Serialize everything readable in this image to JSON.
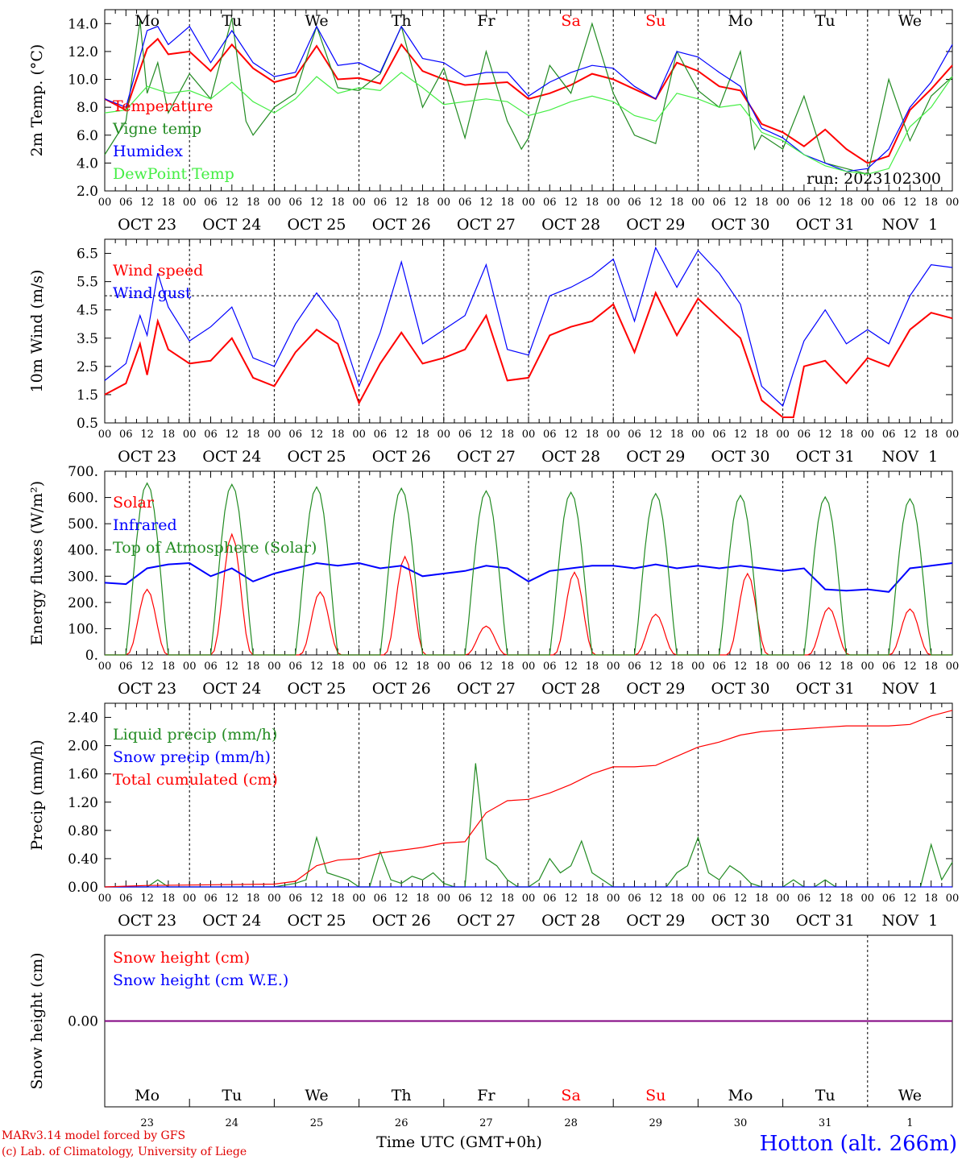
{
  "colors": {
    "red": "#ff0000",
    "green": "#228b22",
    "blue": "#0000ff",
    "lightgreen": "#44ee44",
    "purple": "#800080",
    "black": "#000000"
  },
  "days": [
    {
      "dow": "Mo",
      "date": "OCT 23",
      "num": "23",
      "weekend": false
    },
    {
      "dow": "Tu",
      "date": "OCT 24",
      "num": "24",
      "weekend": false
    },
    {
      "dow": "We",
      "date": "OCT 25",
      "num": "25",
      "weekend": false
    },
    {
      "dow": "Th",
      "date": "OCT 26",
      "num": "26",
      "weekend": false
    },
    {
      "dow": "Fr",
      "date": "OCT 27",
      "num": "27",
      "weekend": false
    },
    {
      "dow": "Sa",
      "date": "OCT 28",
      "num": "28",
      "weekend": true
    },
    {
      "dow": "Su",
      "date": "OCT 29",
      "num": "29",
      "weekend": true
    },
    {
      "dow": "Mo",
      "date": "OCT 30",
      "num": "30",
      "weekend": false
    },
    {
      "dow": "Tu",
      "date": "OCT 31",
      "num": "31",
      "weekend": false
    },
    {
      "dow": "We",
      "date": "NOV  1",
      "num": "1",
      "weekend": false
    }
  ],
  "hour_ticks": [
    "00",
    "06",
    "12",
    "18"
  ],
  "last_tick": "00",
  "footer": {
    "model": "MARv3.14 model forced by GFS",
    "copyright": "(c) Lab. of Climatology, University of Liege",
    "xlabel": "Time UTC (GMT+0h)",
    "station": "Hotton (alt. 266m)"
  },
  "chart_data": [
    {
      "type": "line",
      "ylabel": "2m Temp. (°C)",
      "ylim": [
        2.0,
        15.0
      ],
      "yticks": [
        "2.0",
        "4.0",
        "6.0",
        "8.0",
        "10.0",
        "12.0",
        "14.0"
      ],
      "run_label": "run: 2023102300",
      "x_unit": "hours since OCT 23 00 UTC",
      "series": [
        {
          "name": "Temperature",
          "color": "#ff0000",
          "x": [
            0,
            6,
            12,
            15,
            18,
            24,
            30,
            36,
            42,
            48,
            54,
            60,
            66,
            72,
            78,
            84,
            90,
            96,
            102,
            108,
            114,
            120,
            126,
            132,
            138,
            144,
            150,
            156,
            162,
            168,
            174,
            180,
            186,
            192,
            198,
            204,
            210,
            216,
            222,
            228,
            234,
            240
          ],
          "y": [
            8.6,
            7.8,
            12.2,
            12.9,
            11.8,
            12.0,
            10.6,
            12.5,
            10.8,
            9.8,
            10.2,
            12.4,
            10.0,
            10.1,
            9.7,
            12.5,
            10.6,
            10.0,
            9.6,
            9.7,
            9.8,
            8.6,
            9.0,
            9.6,
            10.4,
            10.0,
            9.3,
            8.6,
            11.2,
            10.6,
            9.5,
            9.2,
            6.8,
            6.2,
            5.2,
            6.4,
            5.0,
            4.0,
            4.5,
            7.8,
            9.3,
            11.0
          ]
        },
        {
          "name": "Vigne temp",
          "color": "#228b22",
          "x": [
            0,
            6,
            10,
            12,
            15,
            18,
            24,
            30,
            36,
            40,
            42,
            48,
            54,
            60,
            66,
            72,
            78,
            84,
            90,
            96,
            102,
            108,
            114,
            118,
            120,
            126,
            132,
            138,
            144,
            150,
            156,
            162,
            168,
            174,
            180,
            184,
            186,
            192,
            198,
            204,
            210,
            216,
            222,
            228,
            234,
            240
          ],
          "y": [
            4.6,
            7.0,
            14.2,
            9.0,
            11.2,
            7.6,
            10.4,
            8.6,
            14.4,
            7.0,
            6.0,
            8.0,
            9.0,
            13.8,
            9.4,
            9.2,
            10.4,
            13.8,
            8.0,
            10.8,
            5.8,
            12.0,
            7.0,
            5.0,
            5.8,
            11.0,
            9.0,
            14.0,
            9.0,
            6.0,
            5.4,
            12.0,
            9.2,
            8.0,
            12.0,
            5.0,
            6.0,
            5.0,
            8.8,
            4.0,
            3.6,
            3.2,
            10.0,
            5.6,
            8.8,
            10.2
          ]
        },
        {
          "name": "Humidex",
          "color": "#0000ff",
          "x": [
            0,
            6,
            12,
            15,
            18,
            24,
            30,
            36,
            42,
            48,
            54,
            60,
            66,
            72,
            78,
            84,
            90,
            96,
            102,
            108,
            114,
            120,
            126,
            132,
            138,
            144,
            150,
            156,
            162,
            168,
            174,
            180,
            186,
            192,
            198,
            204,
            210,
            216,
            222,
            228,
            234,
            240
          ],
          "y": [
            8.6,
            8.0,
            13.5,
            13.8,
            12.5,
            13.8,
            11.2,
            13.5,
            11.2,
            10.2,
            10.5,
            13.8,
            11.0,
            11.2,
            10.5,
            13.8,
            11.5,
            11.2,
            10.2,
            10.5,
            10.5,
            8.8,
            9.8,
            10.5,
            11.0,
            10.8,
            9.5,
            8.6,
            12.0,
            11.6,
            10.5,
            9.5,
            6.5,
            5.8,
            4.6,
            4.0,
            3.4,
            3.6,
            5.0,
            8.0,
            9.8,
            12.5
          ]
        },
        {
          "name": "DewPoint Temp",
          "color": "#44ee44",
          "x": [
            0,
            6,
            12,
            18,
            24,
            30,
            36,
            42,
            48,
            54,
            60,
            66,
            72,
            78,
            84,
            90,
            96,
            102,
            108,
            114,
            120,
            126,
            132,
            138,
            144,
            150,
            156,
            162,
            168,
            174,
            180,
            186,
            192,
            198,
            204,
            210,
            216,
            222,
            228,
            234,
            240
          ],
          "y": [
            7.6,
            7.8,
            9.5,
            9.0,
            9.2,
            8.6,
            9.8,
            8.4,
            7.6,
            8.6,
            10.2,
            9.0,
            9.4,
            9.2,
            10.5,
            9.4,
            8.2,
            8.4,
            8.6,
            8.4,
            7.4,
            7.8,
            8.4,
            8.8,
            8.4,
            7.4,
            7.0,
            9.0,
            8.6,
            8.0,
            8.2,
            6.2,
            5.6,
            4.6,
            3.8,
            3.4,
            3.2,
            3.6,
            6.6,
            8.0,
            10.2
          ]
        }
      ]
    },
    {
      "type": "line",
      "ylabel": "10m Wind (m/s)",
      "ylim": [
        0.5,
        7.0
      ],
      "yticks": [
        "0.5",
        "1.5",
        "2.5",
        "3.5",
        "4.5",
        "5.5",
        "6.5"
      ],
      "reference_line": 5.0,
      "x_unit": "hours since OCT 23 00 UTC",
      "series": [
        {
          "name": "Wind speed",
          "color": "#ff0000",
          "x": [
            0,
            6,
            10,
            12,
            15,
            18,
            24,
            30,
            36,
            42,
            48,
            54,
            60,
            66,
            72,
            78,
            84,
            90,
            96,
            102,
            108,
            114,
            120,
            126,
            132,
            138,
            144,
            150,
            156,
            162,
            168,
            174,
            180,
            186,
            192,
            195,
            198,
            204,
            210,
            216,
            222,
            228,
            234,
            240
          ],
          "y": [
            1.5,
            1.9,
            3.3,
            2.2,
            4.1,
            3.1,
            2.6,
            2.7,
            3.5,
            2.1,
            1.8,
            3.0,
            3.8,
            3.3,
            1.2,
            2.6,
            3.7,
            2.6,
            2.8,
            3.1,
            4.3,
            2.0,
            2.1,
            3.6,
            3.9,
            4.1,
            4.7,
            3.0,
            5.1,
            3.6,
            4.9,
            4.2,
            3.5,
            1.3,
            0.7,
            0.7,
            2.5,
            2.7,
            1.9,
            2.8,
            2.5,
            3.8,
            4.4,
            4.2
          ]
        },
        {
          "name": "Wind gust",
          "color": "#0000ff",
          "x": [
            0,
            6,
            10,
            12,
            15,
            18,
            24,
            30,
            36,
            42,
            48,
            54,
            60,
            66,
            72,
            78,
            84,
            90,
            96,
            102,
            108,
            114,
            120,
            126,
            132,
            138,
            144,
            150,
            156,
            162,
            168,
            174,
            180,
            186,
            192,
            195,
            198,
            204,
            210,
            216,
            222,
            228,
            234,
            240
          ],
          "y": [
            2.0,
            2.6,
            4.3,
            3.6,
            5.8,
            4.6,
            3.4,
            3.9,
            4.6,
            2.8,
            2.5,
            4.0,
            5.1,
            4.1,
            1.8,
            3.7,
            6.2,
            3.3,
            3.8,
            4.3,
            6.1,
            3.1,
            2.9,
            5.0,
            5.3,
            5.7,
            6.3,
            4.1,
            6.7,
            5.3,
            6.6,
            5.8,
            4.7,
            1.8,
            1.1,
            2.3,
            3.4,
            4.5,
            3.3,
            3.8,
            3.3,
            5.0,
            6.1,
            6.0
          ]
        }
      ]
    },
    {
      "type": "line",
      "ylabel": "Energy fluxes (W/m²)",
      "ylim": [
        0,
        700
      ],
      "yticks": [
        "0.",
        "100.",
        "200.",
        "300.",
        "400.",
        "500.",
        "600.",
        "700."
      ],
      "x_unit": "hours since OCT 23 00 UTC",
      "series": [
        {
          "name": "Solar",
          "color": "#ff0000",
          "peaks": [
            250,
            460,
            240,
            375,
            110,
            315,
            155,
            310,
            180,
            175
          ],
          "peak_hours": [
            12,
            12,
            13,
            13,
            12,
            13,
            12,
            14,
            13,
            12
          ]
        },
        {
          "name": "Infrared",
          "color": "#0000ff",
          "x": [
            0,
            6,
            12,
            18,
            24,
            30,
            36,
            42,
            48,
            54,
            60,
            66,
            72,
            78,
            84,
            90,
            96,
            102,
            108,
            114,
            120,
            126,
            132,
            138,
            144,
            150,
            156,
            162,
            168,
            174,
            180,
            186,
            192,
            198,
            204,
            210,
            216,
            222,
            228,
            234,
            240
          ],
          "y": [
            275,
            270,
            330,
            345,
            350,
            300,
            330,
            280,
            310,
            330,
            350,
            340,
            350,
            330,
            340,
            300,
            310,
            320,
            340,
            330,
            280,
            320,
            330,
            340,
            340,
            330,
            345,
            330,
            340,
            330,
            340,
            330,
            320,
            330,
            250,
            245,
            250,
            240,
            330,
            340,
            350
          ]
        },
        {
          "name": "Top of Atmosphere (Solar)",
          "color": "#228b22",
          "peaks": [
            655,
            650,
            640,
            635,
            625,
            620,
            615,
            608,
            602,
            595
          ],
          "peak_hours": [
            12,
            12,
            12,
            12,
            12,
            12,
            12,
            12,
            12,
            12
          ]
        }
      ]
    },
    {
      "type": "line",
      "ylabel": "Precip (mm/h)",
      "ylim": [
        0,
        2.6
      ],
      "yticks": [
        "0.00",
        "0.40",
        "0.80",
        "1.20",
        "1.60",
        "2.00",
        "2.40"
      ],
      "x_unit": "hours since OCT 23 00 UTC",
      "series": [
        {
          "name": "Liquid precip (mm/h)",
          "color": "#228b22",
          "x": [
            0,
            12,
            15,
            18,
            48,
            54,
            57,
            60,
            63,
            66,
            69,
            72,
            75,
            78,
            81,
            84,
            87,
            90,
            93,
            96,
            99,
            102,
            105,
            108,
            111,
            114,
            117,
            120,
            123,
            126,
            129,
            132,
            135,
            138,
            141,
            144,
            147,
            150,
            153,
            156,
            159,
            162,
            165,
            168,
            171,
            174,
            177,
            180,
            183,
            186,
            189,
            192,
            195,
            198,
            201,
            204,
            207,
            210,
            213,
            216,
            219,
            222,
            225,
            228,
            231,
            234,
            237,
            240
          ],
          "y": [
            0,
            0,
            0.1,
            0,
            0,
            0.05,
            0.1,
            0.7,
            0.2,
            0.15,
            0.1,
            0,
            0,
            0.5,
            0.1,
            0.05,
            0.15,
            0.1,
            0.2,
            0.05,
            0,
            0,
            1.75,
            0.4,
            0.3,
            0.1,
            0,
            0,
            0.1,
            0.4,
            0.2,
            0.3,
            0.65,
            0.2,
            0.1,
            0,
            0,
            0,
            0,
            0,
            0,
            0.2,
            0.3,
            0.7,
            0.2,
            0.1,
            0.3,
            0.2,
            0.05,
            0,
            0,
            0,
            0.1,
            0,
            0,
            0.1,
            0,
            0,
            0,
            0,
            0,
            0,
            0,
            0,
            0,
            0.6,
            0.1,
            0.35
          ]
        },
        {
          "name": "Snow precip (mm/h)",
          "color": "#0000ff",
          "x": [
            0,
            240
          ],
          "y": [
            0,
            0
          ]
        },
        {
          "name": "Total cumulated (cm)",
          "color": "#ff0000",
          "x": [
            0,
            12,
            48,
            54,
            60,
            66,
            72,
            78,
            84,
            90,
            96,
            102,
            108,
            114,
            120,
            126,
            132,
            138,
            144,
            150,
            156,
            162,
            168,
            174,
            180,
            186,
            192,
            198,
            204,
            210,
            216,
            222,
            228,
            234,
            240
          ],
          "y": [
            0,
            0.02,
            0.04,
            0.08,
            0.3,
            0.38,
            0.4,
            0.48,
            0.52,
            0.56,
            0.62,
            0.64,
            1.05,
            1.22,
            1.24,
            1.33,
            1.45,
            1.6,
            1.7,
            1.7,
            1.72,
            1.85,
            1.98,
            2.05,
            2.15,
            2.2,
            2.22,
            2.24,
            2.26,
            2.28,
            2.28,
            2.28,
            2.3,
            2.42,
            2.5
          ]
        }
      ]
    },
    {
      "type": "line",
      "ylabel": "Snow height (cm)",
      "ylim": [
        -1,
        1
      ],
      "yticks": [
        "0.00"
      ],
      "x_unit": "hours since OCT 23 00 UTC",
      "series": [
        {
          "name": "Snow height (cm)",
          "color": "#ff0000",
          "x": [
            0,
            240
          ],
          "y": [
            0,
            0
          ]
        },
        {
          "name": "Snow height (cm W.E.)",
          "color": "#0000ff",
          "x": [
            0,
            240
          ],
          "y": [
            0,
            0
          ]
        }
      ]
    }
  ]
}
